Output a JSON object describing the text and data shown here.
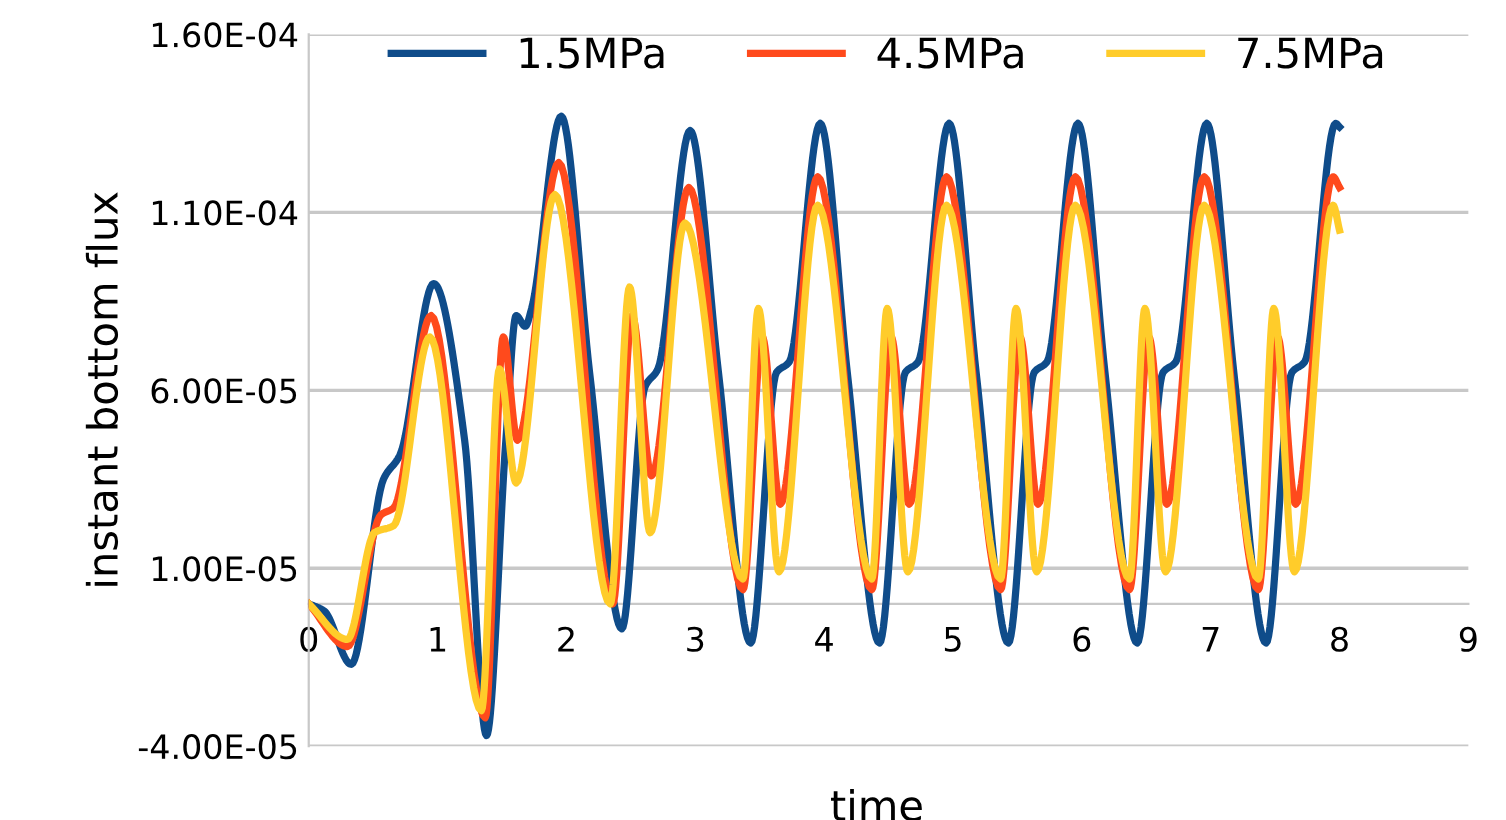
{
  "chart_data": {
    "type": "line",
    "xlabel": "time",
    "ylabel": "instant bottom flux",
    "xlim": [
      0,
      9
    ],
    "xticks": [
      0,
      1,
      2,
      3,
      4,
      5,
      6,
      7,
      8,
      9
    ],
    "ylim": [
      -4e-05,
      0.00016
    ],
    "yticks": [
      {
        "value": -4e-05,
        "label": "-4.00E-05"
      },
      {
        "value": 1e-05,
        "label": "1.00E-05"
      },
      {
        "value": 6e-05,
        "label": "6.00E-05"
      },
      {
        "value": 0.00011,
        "label": "1.10E-04"
      },
      {
        "value": 0.00016,
        "label": "1.60E-04"
      }
    ],
    "grid": "y",
    "legend": "top",
    "marker": "none",
    "line_style": "solid",
    "series": [
      {
        "name": "1.5MPa",
        "color": "#0f4c8a",
        "x": [
          0,
          0.12,
          0.33,
          0.58,
          0.71,
          0.97,
          1.21,
          1.38,
          1.53,
          1.61,
          1.68,
          1.73,
          1.96,
          2.18,
          2.43,
          2.61,
          2.71,
          2.96,
          3.18,
          3.43,
          3.63,
          3.73,
          3.97,
          4.18,
          4.43,
          4.63,
          4.73,
          4.97,
          5.18,
          5.43,
          5.63,
          5.73,
          5.97,
          6.18,
          6.43,
          6.63,
          6.73,
          6.97,
          7.18,
          7.43,
          7.63,
          7.73,
          7.97,
          8.0
        ],
        "values": [
          0,
          -2e-06,
          -1.7e-05,
          3.5e-05,
          4.2e-05,
          9e-05,
          4.6e-05,
          -3.7e-05,
          4.6e-05,
          8.1e-05,
          7.8e-05,
          8.3e-05,
          0.000137,
          6.5e-05,
          -7e-06,
          6.1e-05,
          6.6e-05,
          0.000133,
          6.5e-05,
          -1.1e-05,
          6.5e-05,
          6.8e-05,
          0.000135,
          6.5e-05,
          -1.1e-05,
          6.5e-05,
          6.8e-05,
          0.000135,
          6.5e-05,
          -1.1e-05,
          6.5e-05,
          6.8e-05,
          0.000135,
          6.5e-05,
          -1.1e-05,
          6.5e-05,
          6.8e-05,
          0.000135,
          6.5e-05,
          -1.1e-05,
          6.5e-05,
          6.8e-05,
          0.000135,
          0.000134
        ]
      },
      {
        "name": "4.5MPa",
        "color": "#ff4a1c",
        "x": [
          0,
          0.3,
          0.56,
          0.66,
          0.95,
          1.37,
          1.51,
          1.62,
          1.94,
          2.36,
          2.51,
          2.66,
          2.95,
          3.37,
          3.52,
          3.66,
          3.95,
          4.37,
          4.52,
          4.66,
          4.95,
          5.37,
          5.52,
          5.66,
          5.95,
          6.37,
          6.52,
          6.66,
          6.95,
          7.37,
          7.52,
          7.66,
          7.95,
          8.0
        ],
        "values": [
          0,
          -1.2e-05,
          2.5e-05,
          2.7e-05,
          8.1e-05,
          -3.2e-05,
          7.5e-05,
          4.6e-05,
          0.000124,
          0,
          8.1e-05,
          3.6e-05,
          0.000117,
          4e-06,
          7.5e-05,
          2.8e-05,
          0.00012,
          4e-06,
          7.5e-05,
          2.8e-05,
          0.00012,
          4e-06,
          7.5e-05,
          2.8e-05,
          0.00012,
          4e-06,
          7.5e-05,
          2.8e-05,
          0.00012,
          4e-06,
          7.5e-05,
          2.8e-05,
          0.00012,
          0.000117
        ]
      },
      {
        "name": "7.5MPa",
        "color": "#ffcc2a",
        "x": [
          0,
          0.3,
          0.51,
          0.66,
          0.94,
          1.34,
          1.48,
          1.61,
          1.91,
          2.34,
          2.49,
          2.65,
          2.92,
          3.37,
          3.49,
          3.65,
          3.95,
          4.37,
          4.49,
          4.65,
          4.95,
          5.37,
          5.49,
          5.65,
          5.95,
          6.37,
          6.49,
          6.65,
          6.95,
          7.37,
          7.49,
          7.65,
          7.95,
          8.0
        ],
        "values": [
          0,
          -1e-05,
          2e-05,
          2.2e-05,
          7.5e-05,
          -3e-05,
          6.6e-05,
          3.4e-05,
          0.000115,
          0,
          8.9e-05,
          2e-05,
          0.000107,
          7e-06,
          8.3e-05,
          9e-06,
          0.000112,
          7e-06,
          8.3e-05,
          9e-06,
          0.000112,
          7e-06,
          8.3e-05,
          9e-06,
          0.000112,
          7e-06,
          8.3e-05,
          9e-06,
          0.000112,
          7e-06,
          8.3e-05,
          9e-06,
          0.000112,
          0.000105
        ]
      }
    ]
  }
}
